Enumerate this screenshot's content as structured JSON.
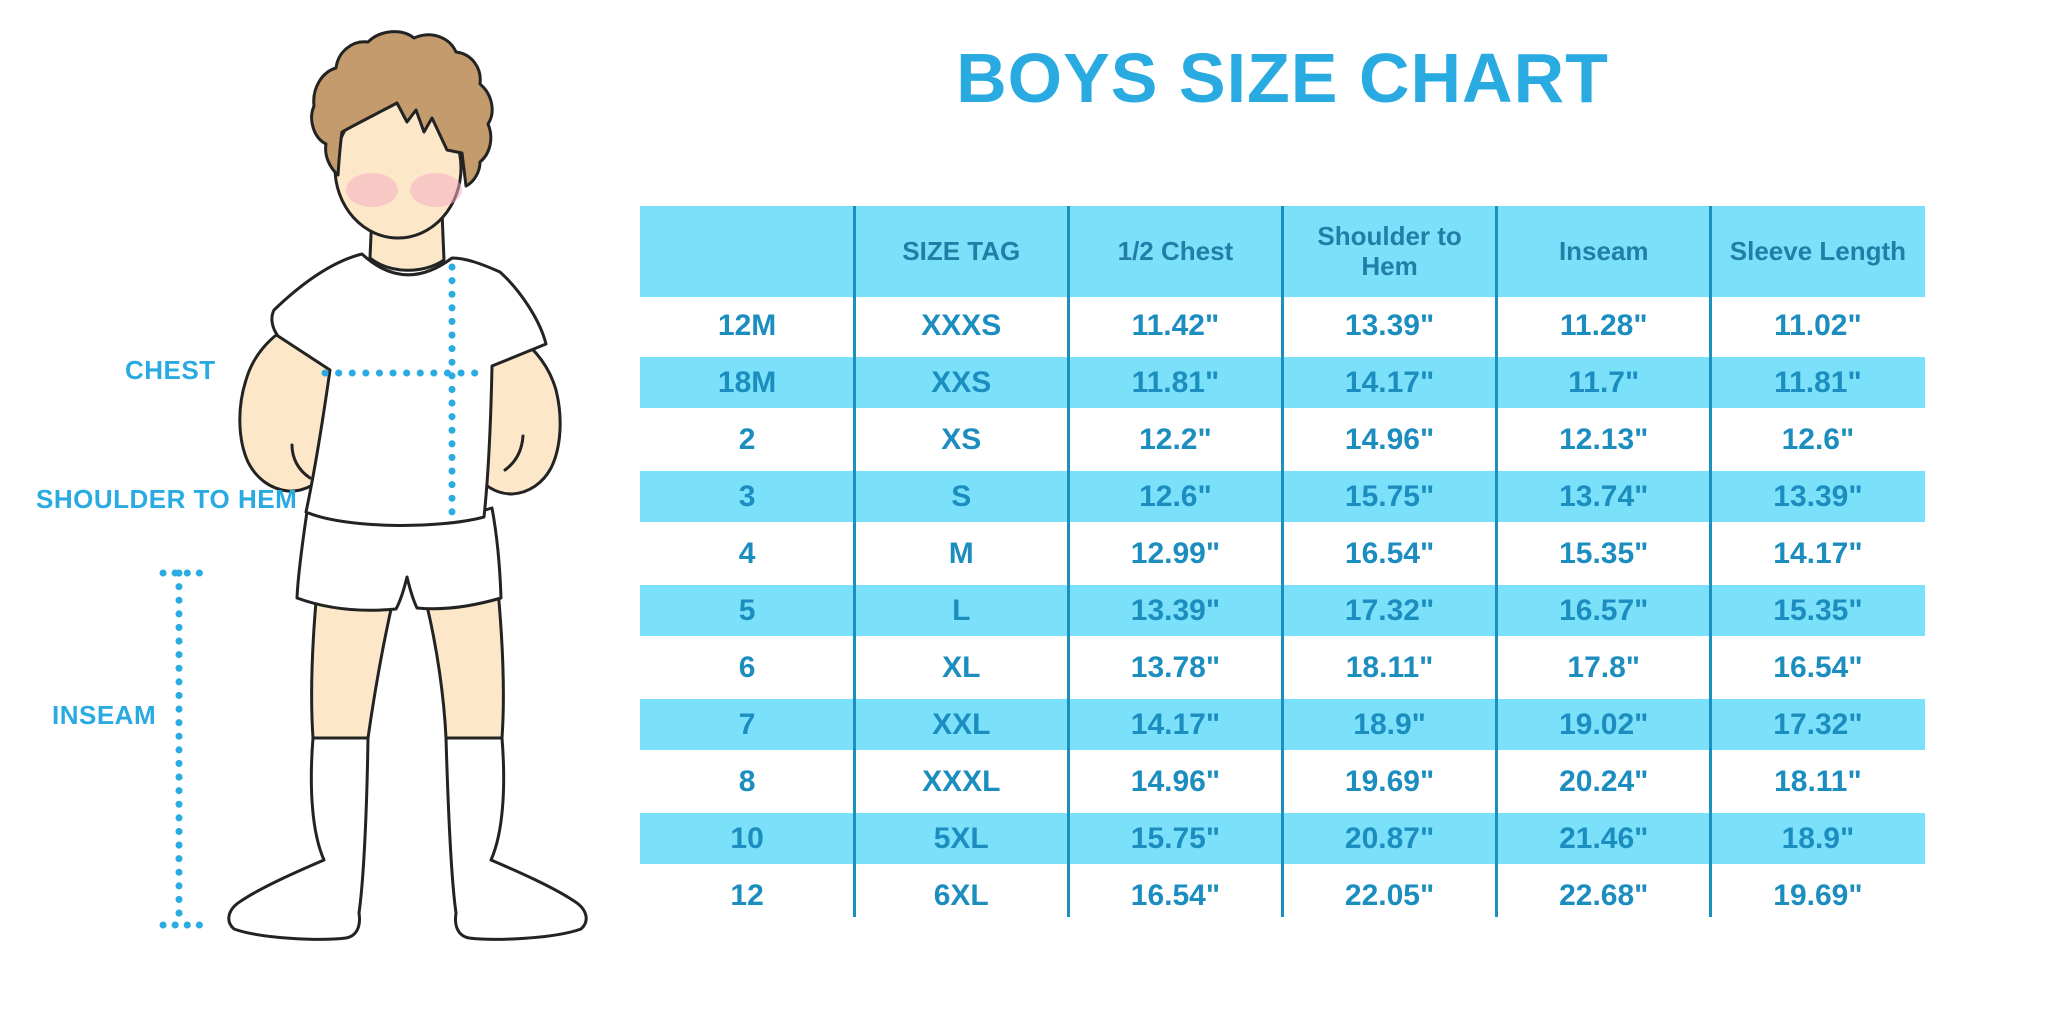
{
  "title": "BOYS SIZE CHART",
  "diagram": {
    "labels": {
      "chest": "CHEST",
      "shoulder_to_hem": "SHOULDER TO HEM",
      "inseam": "INSEAM"
    }
  },
  "chart_data": {
    "type": "table",
    "title": "BOYS SIZE CHART",
    "columns": [
      "",
      "SIZE TAG",
      "1/2 Chest",
      "Shoulder to Hem",
      "Inseam",
      "Sleeve Length"
    ],
    "rows": [
      [
        "12M",
        "XXXS",
        "11.42\"",
        "13.39\"",
        "11.28\"",
        "11.02\""
      ],
      [
        "18M",
        "XXS",
        "11.81\"",
        "14.17\"",
        "11.7\"",
        "11.81\""
      ],
      [
        "2",
        "XS",
        "12.2\"",
        "14.96\"",
        "12.13\"",
        "12.6\""
      ],
      [
        "3",
        "S",
        "12.6\"",
        "15.75\"",
        "13.74\"",
        "13.39\""
      ],
      [
        "4",
        "M",
        "12.99\"",
        "16.54\"",
        "15.35\"",
        "14.17\""
      ],
      [
        "5",
        "L",
        "13.39\"",
        "17.32\"",
        "16.57\"",
        "15.35\""
      ],
      [
        "6",
        "XL",
        "13.78\"",
        "18.11\"",
        "17.8\"",
        "16.54\""
      ],
      [
        "7",
        "XXL",
        "14.17\"",
        "18.9\"",
        "19.02\"",
        "17.32\""
      ],
      [
        "8",
        "XXXL",
        "14.96\"",
        "19.69\"",
        "20.24\"",
        "18.11\""
      ],
      [
        "10",
        "5XL",
        "15.75\"",
        "20.87\"",
        "21.46\"",
        "18.9\""
      ],
      [
        "12",
        "6XL",
        "16.54\"",
        "22.05\"",
        "22.68\"",
        "19.69\""
      ]
    ],
    "row_shading": "alternating white / cyan starting white",
    "grid": "vertical column dividers only"
  },
  "colors": {
    "accent_blue": "#29abe2",
    "band_cyan": "#7be1fb",
    "divider_blue": "#1a8fc0",
    "header_text": "#227ea6",
    "cell_text": "#1c8dbf",
    "skin": "#fce8c9",
    "hair": "#c49b6d",
    "blush": "#f4adc1",
    "outline": "#232323"
  }
}
